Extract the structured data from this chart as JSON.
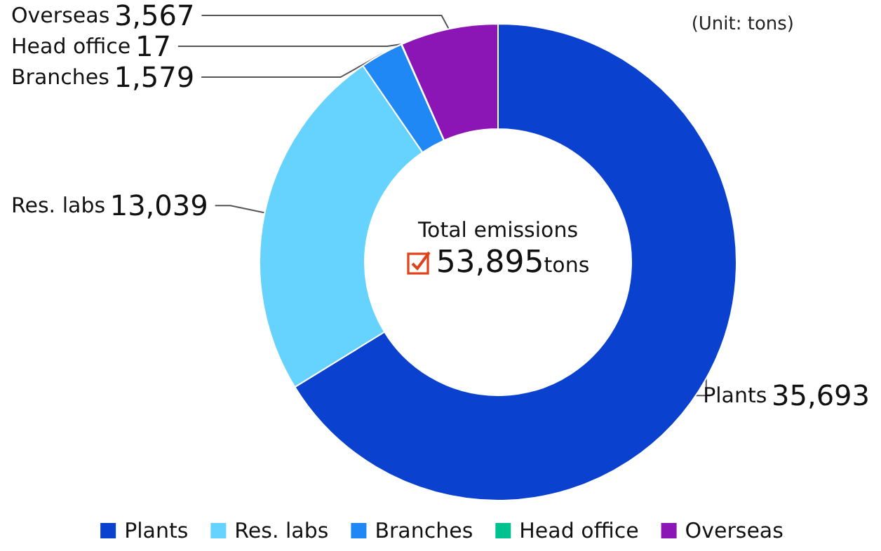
{
  "chart_data": {
    "type": "donut",
    "title": "Total emissions",
    "categories": [
      "Plants",
      "Res. labs",
      "Branches",
      "Head office",
      "Overseas"
    ],
    "values": [
      35693,
      13039,
      1579,
      17,
      3567
    ],
    "colors": [
      "#0b41cf",
      "#66d3ff",
      "#2088f5",
      "#00c28f",
      "#8c15b5"
    ],
    "value_labels": [
      "35,693",
      "13,039",
      "1,579",
      "17",
      "3,567"
    ],
    "legend": "bottom",
    "annotations": [
      "53,895tons",
      "(Unit: tons)"
    ]
  }
}
